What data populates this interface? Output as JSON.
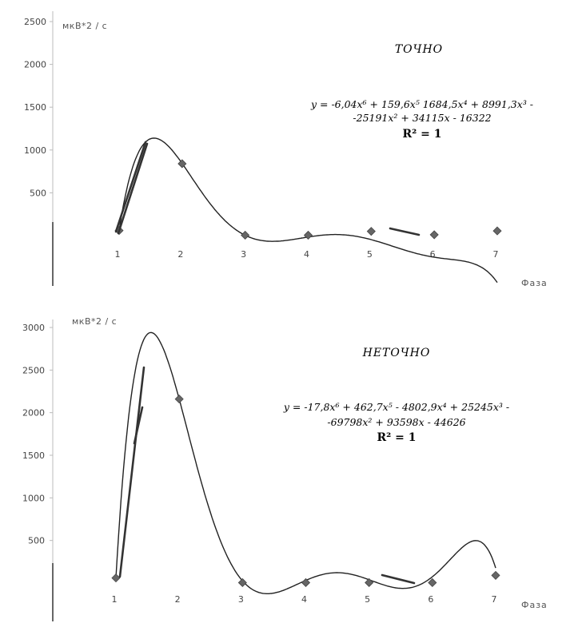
{
  "chart_data": [
    {
      "type": "scatter",
      "title": "ТОЧНО",
      "ylabel": "мкВ*2 / с",
      "xlabel": "Фаза",
      "x": [
        1,
        2,
        3,
        4,
        5,
        6,
        7
      ],
      "series": [
        {
          "values": [
            60,
            840,
            5,
            5,
            50,
            10,
            55
          ]
        }
      ],
      "trendline": {
        "type": "polynomial",
        "order": 6,
        "equation_line1": "y = -6,04x⁶ + 159,6x⁵ 1684,5x⁴ + 8991,3x³ -",
        "equation_line2": "-25191x² + 34115x - 16322",
        "r2": "R² = 1",
        "coefficients": [
          -6.04,
          159.6,
          -1684.5,
          8991.3,
          -25191,
          34115,
          -16322
        ]
      },
      "yticks": [
        "500",
        "1000",
        "1500",
        "2000",
        "2500"
      ],
      "xticks": [
        "1",
        "2",
        "3",
        "4",
        "5",
        "6",
        "7"
      ],
      "ylim": [
        0,
        2500
      ],
      "xlim": [
        0,
        7.5
      ],
      "grid": false
    },
    {
      "type": "scatter",
      "title": "НЕТОЧНО",
      "ylabel": "мкВ*2 / с",
      "xlabel": "Фаза",
      "x": [
        1,
        2,
        3,
        4,
        5,
        6,
        7
      ],
      "series": [
        {
          "values": [
            60,
            2160,
            5,
            5,
            5,
            5,
            90
          ]
        }
      ],
      "trendline": {
        "type": "polynomial",
        "order": 6,
        "equation_line1": "y = -17,8x⁶ + 462,7x⁵ - 4802,9x⁴ + 25245x³ -",
        "equation_line2": "-69798x² + 93598x - 44626",
        "r2": "R² = 1",
        "coefficients": [
          -17.8,
          462.7,
          -4802.9,
          25245,
          -69798,
          93598,
          -44626
        ]
      },
      "yticks": [
        "500",
        "1000",
        "1500",
        "2000",
        "2500",
        "3000"
      ],
      "xticks": [
        "1",
        "2",
        "3",
        "4",
        "5",
        "6",
        "7"
      ],
      "ylim": [
        0,
        3000
      ],
      "xlim": [
        0,
        7.5
      ],
      "grid": false
    }
  ]
}
